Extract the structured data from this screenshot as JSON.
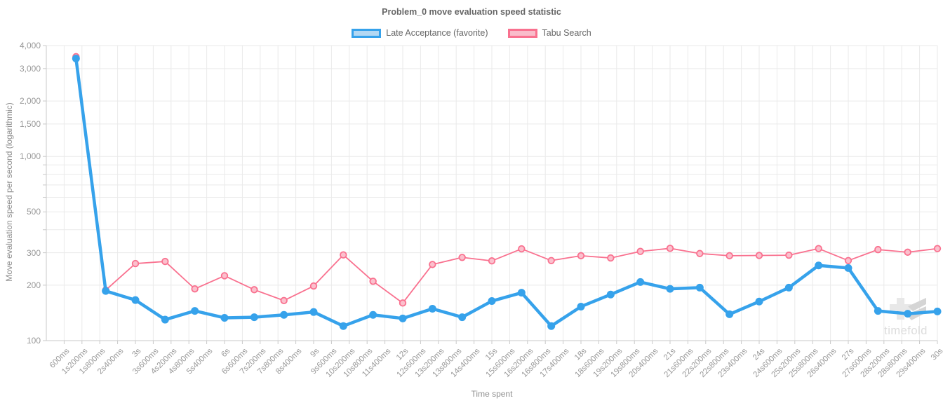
{
  "title": "Problem_0 move evaluation speed statistic",
  "legend": {
    "items": [
      {
        "label": "Late Acceptance (favorite)",
        "stroke": "#36a2eb",
        "fill": "#b3d8f3"
      },
      {
        "label": "Tabu Search",
        "stroke": "#f9718f",
        "fill": "#f9bcca"
      }
    ]
  },
  "watermark": {
    "text": "timefold"
  },
  "chart_data": {
    "type": "line",
    "title": "Problem_0 move evaluation speed statistic",
    "xlabel": "Time spent",
    "ylabel": "Move evaluation speed per second (logarithmic)",
    "legend_position": "top",
    "grid": true,
    "x_axis": {
      "unit": "time",
      "min_seconds": 0,
      "max_seconds": 30,
      "tick_interval_seconds": 0.6,
      "tick_labels": [
        "600ms",
        "1s200ms",
        "1s800ms",
        "2s400ms",
        "3s",
        "3s600ms",
        "4s200ms",
        "4s800ms",
        "5s400ms",
        "6s",
        "6s600ms",
        "7s200ms",
        "7s800ms",
        "8s400ms",
        "9s",
        "9s600ms",
        "10s200ms",
        "10s800ms",
        "11s400ms",
        "12s",
        "12s600ms",
        "13s200ms",
        "13s800ms",
        "14s400ms",
        "15s",
        "15s600ms",
        "16s200ms",
        "16s800ms",
        "17s400ms",
        "18s",
        "18s600ms",
        "19s200ms",
        "19s800ms",
        "20s400ms",
        "21s",
        "21s600ms",
        "22s200ms",
        "22s800ms",
        "23s400ms",
        "24s",
        "24s600ms",
        "25s200ms",
        "25s800ms",
        "26s400ms",
        "27s",
        "27s600ms",
        "28s200ms",
        "28s800ms",
        "29s400ms",
        "30s"
      ]
    },
    "y_axis": {
      "scale": "logarithmic",
      "min": 100,
      "max": 4000,
      "labeled_ticks": [
        {
          "value": 4000,
          "label": "4,000"
        },
        {
          "value": 3000,
          "label": "3,000"
        },
        {
          "value": 2000,
          "label": "2,000"
        },
        {
          "value": 1500,
          "label": "1,500"
        },
        {
          "value": 1000,
          "label": "1,000"
        },
        {
          "value": 500,
          "label": "500"
        },
        {
          "value": 300,
          "label": "300"
        },
        {
          "value": 200,
          "label": "200"
        },
        {
          "value": 100,
          "label": "100"
        }
      ],
      "gridline_values": [
        4000,
        3000,
        2000,
        1500,
        1000,
        900,
        800,
        700,
        600,
        500,
        400,
        300,
        200,
        100
      ]
    },
    "x_seconds": [
      1,
      2,
      3,
      4,
      5,
      6,
      7,
      8,
      9,
      10,
      11,
      12,
      13,
      14,
      15,
      16,
      17,
      18,
      19,
      20,
      21,
      22,
      23,
      24,
      25,
      26,
      27,
      28,
      29,
      30
    ],
    "series": [
      {
        "name": "Late Acceptance (favorite)",
        "color": "#36a2eb",
        "point_style": "filled",
        "values": [
          3400,
          186,
          166,
          130,
          145,
          133,
          134,
          138,
          143,
          120,
          138,
          132,
          149,
          134,
          164,
          182,
          120,
          153,
          178,
          208,
          191,
          194,
          139,
          163,
          194,
          256,
          248,
          145,
          140,
          144
        ]
      },
      {
        "name": "Tabu Search",
        "color": "#f9718f",
        "point_fill": "#fbc0cd",
        "point_style": "ring",
        "values": [
          3480,
          188,
          262,
          269,
          191,
          225,
          189,
          165,
          198,
          292,
          210,
          160,
          259,
          283,
          271,
          315,
          272,
          289,
          281,
          305,
          317,
          297,
          289,
          290,
          291,
          316,
          272,
          312,
          302,
          316
        ]
      }
    ]
  }
}
